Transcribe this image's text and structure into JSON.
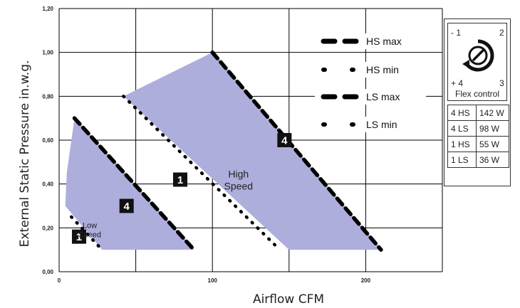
{
  "chart_data": {
    "type": "line",
    "xlabel": "Airflow CFM",
    "ylabel": "External Static Pressure in.w.g.",
    "xlim": [
      0,
      250
    ],
    "ylim": [
      0,
      1.2
    ],
    "x_ticks": [
      "0",
      "100",
      "200"
    ],
    "y_ticks": [
      "0,00",
      "0,20",
      "0,40",
      "0,60",
      "0,80",
      "1,00",
      "1,20"
    ],
    "grid": true,
    "legend_position": "top-right",
    "series": [
      {
        "name": "HS max",
        "style": "long-dash",
        "x": [
          100,
          210
        ],
        "y": [
          1.0,
          0.1
        ]
      },
      {
        "name": "HS min",
        "style": "dotted",
        "x": [
          42,
          144
        ],
        "y": [
          0.8,
          0.1
        ]
      },
      {
        "name": "LS max",
        "style": "long-dash",
        "x": [
          10,
          88
        ],
        "y": [
          0.7,
          0.1
        ]
      },
      {
        "name": "LS min",
        "style": "dotted",
        "x": [
          8,
          28
        ],
        "y": [
          0.25,
          0.1
        ]
      }
    ],
    "regions": [
      {
        "label_lines": [
          "High",
          "Speed"
        ],
        "x": [
          42,
          100,
          210,
          150
        ],
        "y": [
          0.8,
          1.0,
          0.1,
          0.1
        ],
        "label_at": [
          117,
          0.43
        ]
      },
      {
        "label_lines": [
          "Low",
          "Speed"
        ],
        "x": [
          10,
          88,
          28,
          4,
          5
        ],
        "y": [
          0.7,
          0.1,
          0.1,
          0.3,
          0.45
        ],
        "label_at": [
          20,
          0.2
        ]
      }
    ],
    "markers": [
      {
        "label": "1",
        "x": 13,
        "y": 0.16
      },
      {
        "label": "4",
        "x": 44,
        "y": 0.3
      },
      {
        "label": "1",
        "x": 79,
        "y": 0.42
      },
      {
        "label": "4",
        "x": 147,
        "y": 0.6
      }
    ],
    "colors": {
      "region_fill": "#aeaedd",
      "line": "#000000",
      "grid": "#000000"
    }
  },
  "flex_control": {
    "title": "Flex control",
    "dial_labels": {
      "top_left": "- 1",
      "top_right": "2",
      "bottom_left": "+ 4",
      "bottom_right": "3"
    }
  },
  "power_table": [
    {
      "setting": "4 HS",
      "power": "142 W"
    },
    {
      "setting": "4 LS",
      "power": "98 W"
    },
    {
      "setting": "1 HS",
      "power": "55 W"
    },
    {
      "setting": "1 LS",
      "power": "36 W"
    }
  ]
}
